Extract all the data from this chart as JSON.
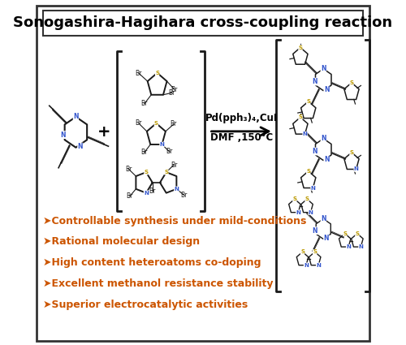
{
  "title": "Sonogashira-Hagihara cross-coupling reaction",
  "title_fontsize": 13,
  "title_fontweight": "bold",
  "bg_color": "#ffffff",
  "border_color": "#333333",
  "bullet_color": "#cc5500",
  "bullet_items": [
    "➤Controllable synthesis under mild-conditions",
    "➤Rational molecular design",
    "➤High content heteroatoms co-doping",
    "➤Excellent methanol resistance stability",
    "➤Superior electrocatalytic activities"
  ],
  "bullet_fontsize": 9.0,
  "arrow_text_line1": "Pd(pph₃)₄,CuI",
  "arrow_text_line2": "DMF ,150°C",
  "N_color": "#3355cc",
  "S_color": "#bb9900",
  "dark_color": "#1a1a1a"
}
